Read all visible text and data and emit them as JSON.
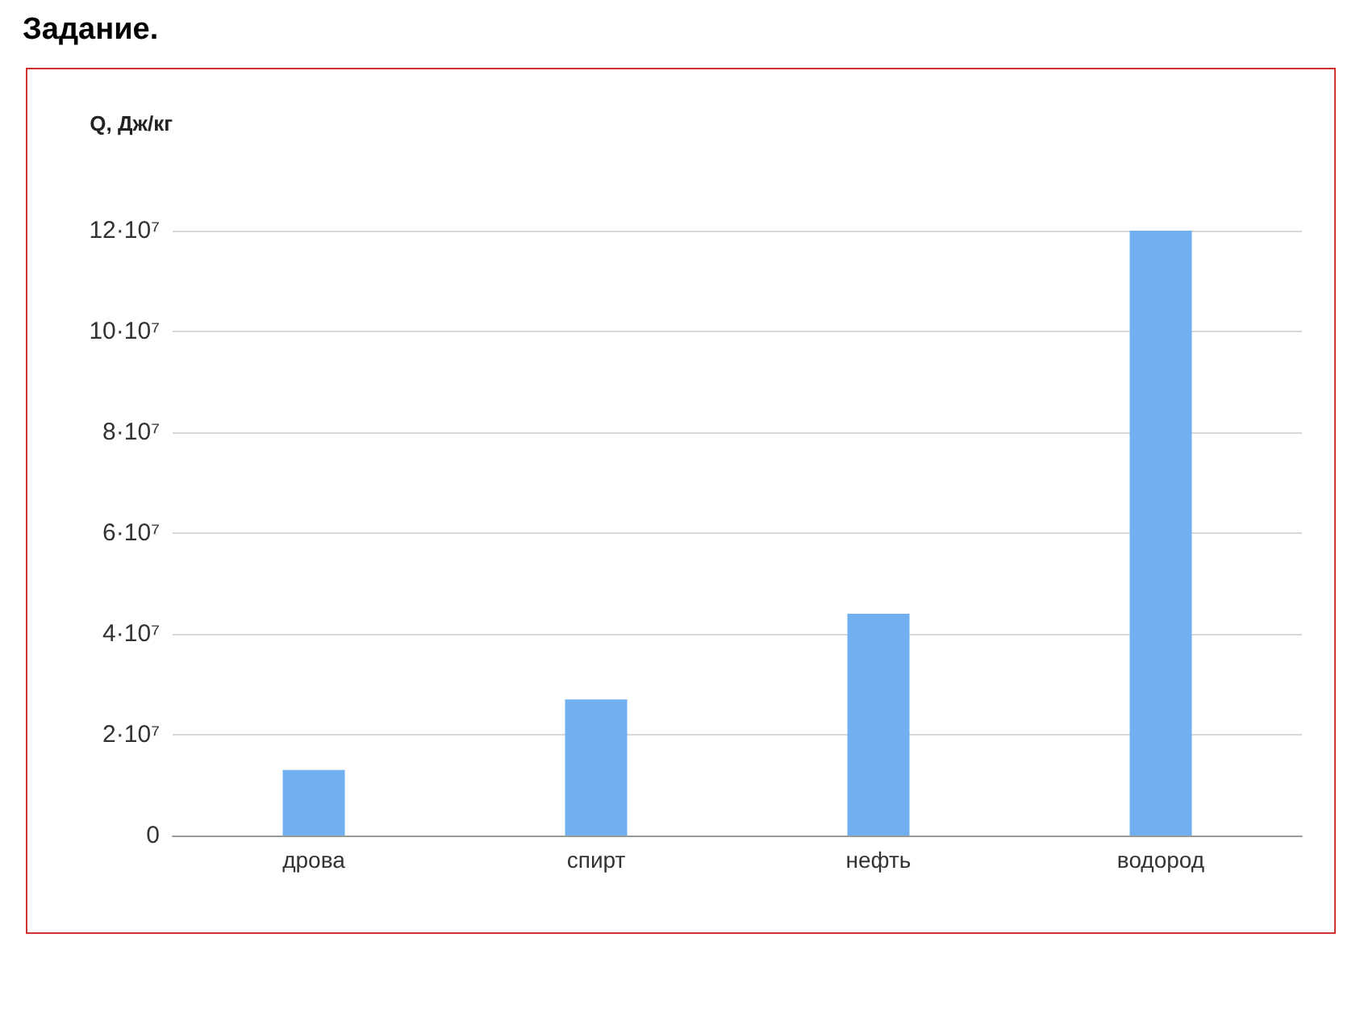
{
  "chart_data": {
    "type": "bar",
    "title": "Задание.",
    "ylabel": "Q, Дж/кг",
    "categories": [
      "дрова",
      "спирт",
      "нефть",
      "водород"
    ],
    "values": [
      13000000,
      27000000,
      44000000,
      120000000
    ],
    "color": "#70b0f0",
    "ylim": [
      0,
      120000000
    ],
    "yticks": [
      0,
      {
        "value": 20000000,
        "label": "2·10⁷"
      },
      {
        "value": 40000000,
        "label": "4·10⁷"
      },
      {
        "value": 60000000,
        "label": "6·10⁷"
      },
      {
        "value": 80000000,
        "label": "8·10⁷"
      },
      {
        "value": 100000000,
        "label": "10·10⁷"
      },
      {
        "value": 120000000,
        "label": "12·10⁷"
      }
    ],
    "grid": "y"
  }
}
